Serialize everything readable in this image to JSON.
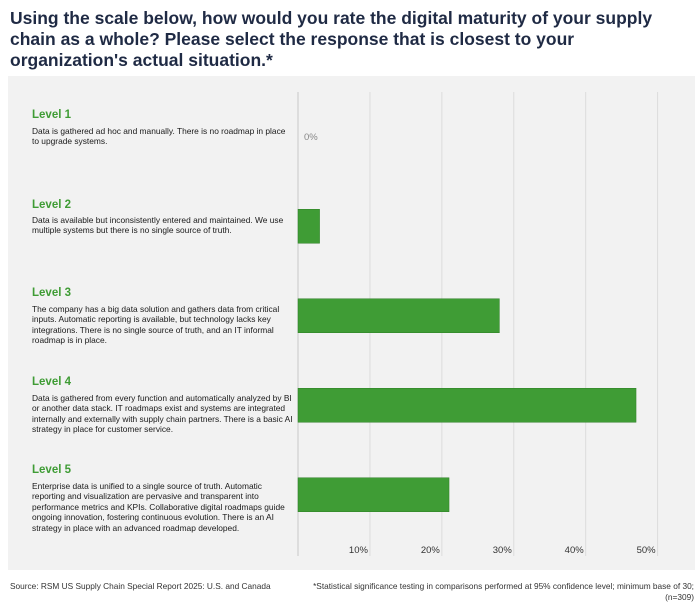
{
  "header": {
    "title": "Using the scale below, how would you rate the digital maturity of your supply chain as a whole? Please select the response that is closest to your organization's actual situation.*"
  },
  "levels": [
    {
      "label": "Level 1",
      "description": "Data is gathered ad hoc and manually. There is no roadmap in place to upgrade systems."
    },
    {
      "label": "Level 2",
      "description": "Data is available but inconsistently entered and maintained. We use multiple systems but there is no single source of truth."
    },
    {
      "label": "Level 3",
      "description": "The company has a big data solution and gathers data from critical inputs. Automatic reporting is available, but technology lacks key integrations. There is no single source of truth, and an IT informal roadmap is in place."
    },
    {
      "label": "Level 4",
      "description": "Data is gathered from every function and automatically analyzed by BI or another data stack. IT roadmaps exist and systems are integrated internally and externally with supply chain partners. There is a basic AI strategy in place for customer service."
    },
    {
      "label": "Level 5",
      "description": "Enterprise data is unified to a single source of truth. Automatic reporting and visualization are pervasive and transparent into performance metrics and KPIs. Collaborative digital roadmaps guide ongoing innovation, fostering continuous evolution. There is an AI strategy in place with an advanced roadmap developed."
    }
  ],
  "chart_data": {
    "type": "bar",
    "orientation": "horizontal",
    "categories": [
      "Level 1",
      "Level 2",
      "Level 3",
      "Level 4",
      "Level 5"
    ],
    "values": [
      0,
      3,
      28,
      47,
      21
    ],
    "data_labels": [
      "0%",
      "",
      "",
      "",
      ""
    ],
    "xlim": [
      0,
      52
    ],
    "x_ticks": [
      10,
      20,
      30,
      40,
      50
    ],
    "x_tick_labels": [
      "10%",
      "20%",
      "30%",
      "40%",
      "50%"
    ],
    "grid": true,
    "bar_color": "#3f9c35"
  },
  "footer": {
    "source": "Source: RSM US Supply Chain Special Report 2025: U.S. and Canada",
    "note": "*Statistical significance testing in comparisons performed at 95% confidence level; minimum base of 30; (n=309)"
  }
}
